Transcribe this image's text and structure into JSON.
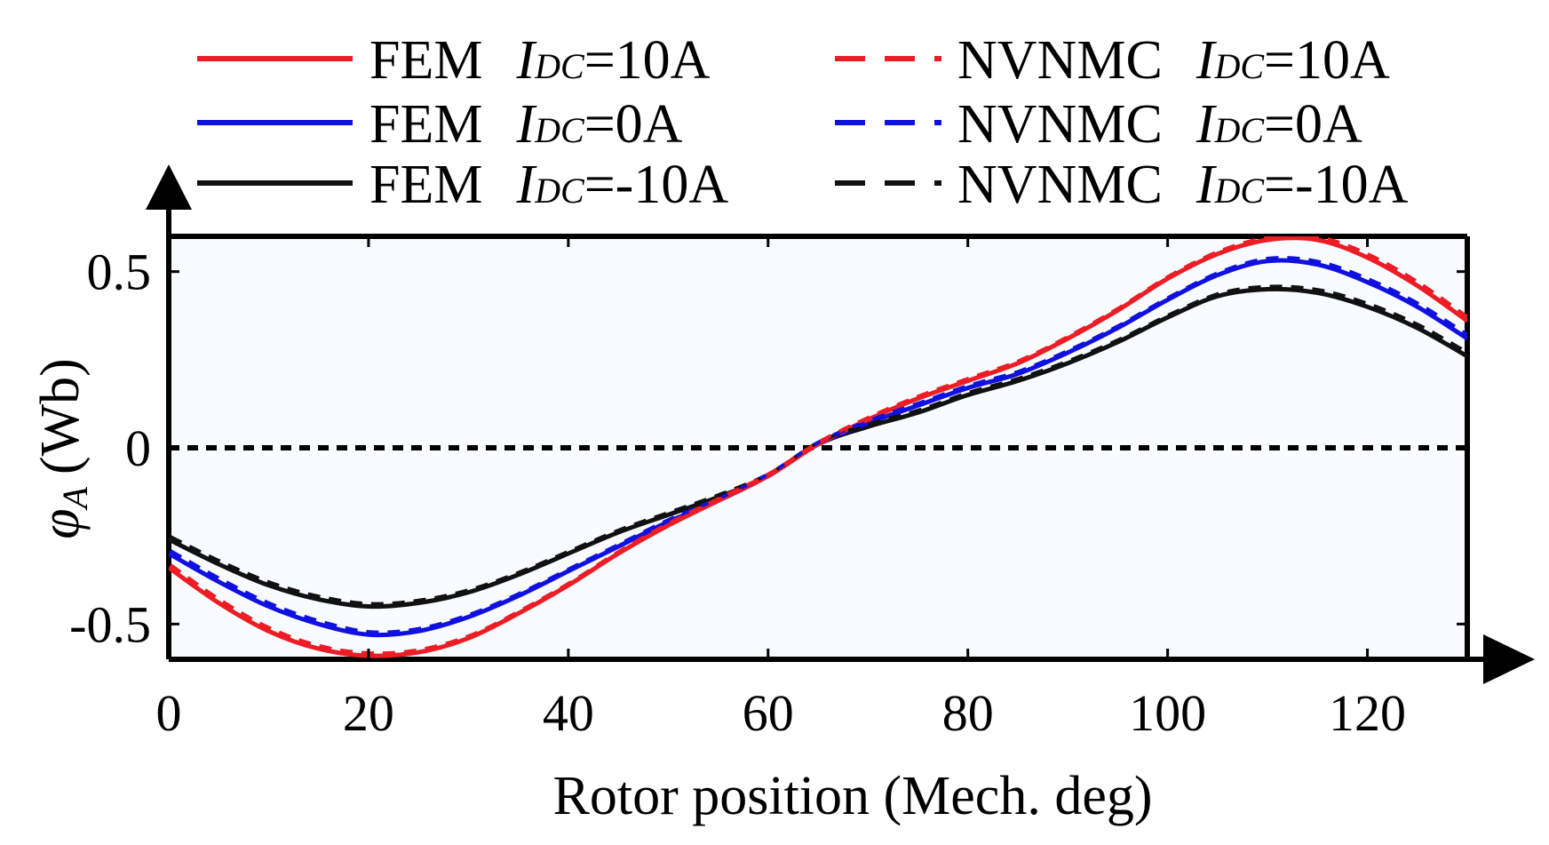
{
  "chart_data": {
    "type": "line",
    "title": "",
    "xlabel": "Rotor position (Mech. deg)",
    "ylabel_symbol": "φ",
    "ylabel_subscript": "A",
    "ylabel_unit": "(Wb)",
    "xlim": [
      0,
      130
    ],
    "ylim": [
      -0.6,
      0.6
    ],
    "xticks": [
      0,
      20,
      40,
      60,
      80,
      100,
      120
    ],
    "yticks": [
      {
        "value": 0.5,
        "label": "0.5"
      },
      {
        "value": 0,
        "label": "0"
      },
      {
        "value": -0.5,
        "label": "-0.5"
      }
    ],
    "grid": false,
    "legend_position": "top, above plot",
    "x": [
      0,
      5,
      10,
      15,
      20,
      25,
      30,
      35,
      40,
      45,
      50,
      55,
      60,
      65,
      70,
      75,
      80,
      85,
      90,
      95,
      100,
      105,
      110,
      115,
      120,
      125,
      130
    ],
    "series": [
      {
        "name": "FEM",
        "condition": "=10A",
        "color": "#ee1c24",
        "style": "solid",
        "values": [
          -0.34,
          -0.44,
          -0.52,
          -0.57,
          -0.59,
          -0.58,
          -0.54,
          -0.47,
          -0.39,
          -0.3,
          -0.22,
          -0.15,
          -0.08,
          0.01,
          0.08,
          0.14,
          0.19,
          0.24,
          0.31,
          0.39,
          0.48,
          0.55,
          0.59,
          0.59,
          0.54,
          0.46,
          0.36
        ]
      },
      {
        "name": "FEM",
        "condition": "=0A",
        "color": "#1010e0",
        "style": "solid",
        "values": [
          -0.3,
          -0.38,
          -0.45,
          -0.5,
          -0.53,
          -0.52,
          -0.48,
          -0.42,
          -0.35,
          -0.28,
          -0.21,
          -0.15,
          -0.08,
          0.01,
          0.07,
          0.12,
          0.17,
          0.21,
          0.27,
          0.34,
          0.42,
          0.49,
          0.53,
          0.52,
          0.47,
          0.4,
          0.31
        ]
      },
      {
        "name": "FEM",
        "condition": "=-10A",
        "color": "#111111",
        "style": "solid",
        "values": [
          -0.26,
          -0.33,
          -0.39,
          -0.43,
          -0.45,
          -0.44,
          -0.41,
          -0.36,
          -0.3,
          -0.24,
          -0.19,
          -0.14,
          -0.08,
          0.01,
          0.06,
          0.1,
          0.15,
          0.19,
          0.24,
          0.3,
          0.37,
          0.43,
          0.45,
          0.44,
          0.4,
          0.34,
          0.26
        ]
      },
      {
        "name": "NVNMC",
        "condition": "=10A",
        "color": "#ee1c24",
        "style": "dashed",
        "values": [
          -0.34,
          -0.44,
          -0.52,
          -0.57,
          -0.59,
          -0.58,
          -0.54,
          -0.47,
          -0.39,
          -0.3,
          -0.22,
          -0.15,
          -0.08,
          0.01,
          0.08,
          0.14,
          0.19,
          0.24,
          0.31,
          0.39,
          0.48,
          0.55,
          0.59,
          0.59,
          0.54,
          0.46,
          0.36
        ]
      },
      {
        "name": "NVNMC",
        "condition": "=0A",
        "color": "#1010e0",
        "style": "dashed",
        "values": [
          -0.3,
          -0.38,
          -0.45,
          -0.5,
          -0.53,
          -0.52,
          -0.48,
          -0.42,
          -0.35,
          -0.28,
          -0.21,
          -0.15,
          -0.08,
          0.01,
          0.07,
          0.12,
          0.17,
          0.21,
          0.27,
          0.34,
          0.42,
          0.49,
          0.53,
          0.52,
          0.47,
          0.4,
          0.31
        ]
      },
      {
        "name": "NVNMC",
        "condition": "=-10A",
        "color": "#111111",
        "style": "dashed",
        "values": [
          -0.26,
          -0.33,
          -0.39,
          -0.43,
          -0.45,
          -0.44,
          -0.41,
          -0.36,
          -0.3,
          -0.24,
          -0.19,
          -0.14,
          -0.08,
          0.01,
          0.06,
          0.1,
          0.15,
          0.19,
          0.24,
          0.3,
          0.37,
          0.43,
          0.45,
          0.44,
          0.4,
          0.34,
          0.26
        ]
      }
    ],
    "legend": [
      {
        "method": "FEM",
        "var": "I",
        "sub": "DC",
        "cond": "=10A",
        "color": "#ee1c24",
        "style": "solid"
      },
      {
        "method": "FEM",
        "var": "I",
        "sub": "DC",
        "cond": "=0A",
        "color": "#1010e0",
        "style": "solid"
      },
      {
        "method": "FEM",
        "var": "I",
        "sub": "DC",
        "cond": "=-10A",
        "color": "#111111",
        "style": "solid"
      },
      {
        "method": "NVNMC",
        "var": "I",
        "sub": "DC",
        "cond": "=10A",
        "color": "#ee1c24",
        "style": "dashed"
      },
      {
        "method": "NVNMC",
        "var": "I",
        "sub": "DC",
        "cond": "=0A",
        "color": "#1010e0",
        "style": "dashed"
      },
      {
        "method": "NVNMC",
        "var": "I",
        "sub": "DC",
        "cond": "=-10A",
        "color": "#111111",
        "style": "dashed"
      }
    ],
    "reference_line": {
      "y": 0,
      "style": "dotted",
      "color": "#000000"
    }
  }
}
